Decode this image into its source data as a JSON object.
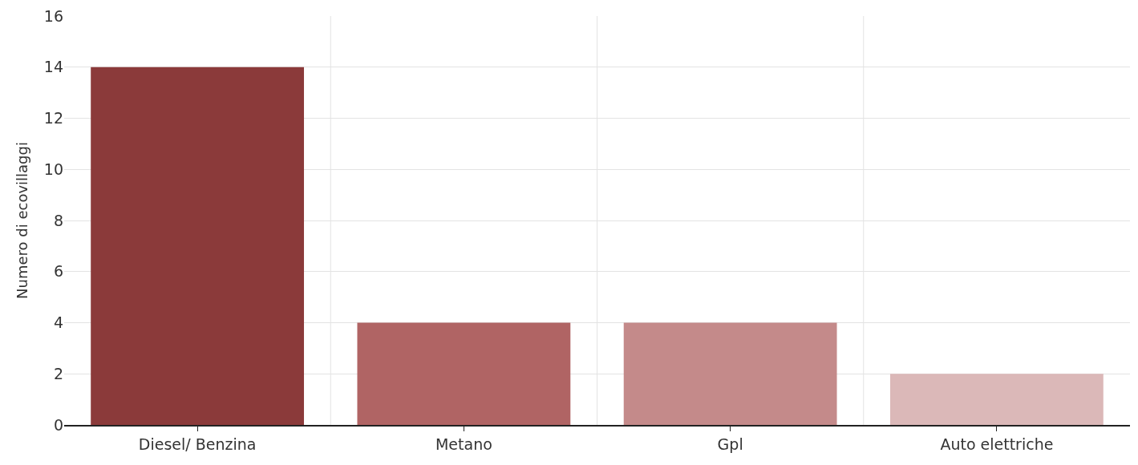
{
  "chart_data": {
    "type": "bar",
    "ylabel": "Numero di ecovillaggi",
    "categories": [
      "Diesel/ Benzina",
      "Metano",
      "Gpl",
      "Auto elettriche"
    ],
    "values": [
      14,
      4,
      4,
      2
    ],
    "colors": [
      "#8b3a3a",
      "#b06464",
      "#c48a8a",
      "#dbb8b8"
    ],
    "ylim": [
      0,
      16
    ],
    "yticks": [
      0,
      2,
      4,
      6,
      8,
      10,
      12,
      14,
      16
    ],
    "grid": true
  }
}
